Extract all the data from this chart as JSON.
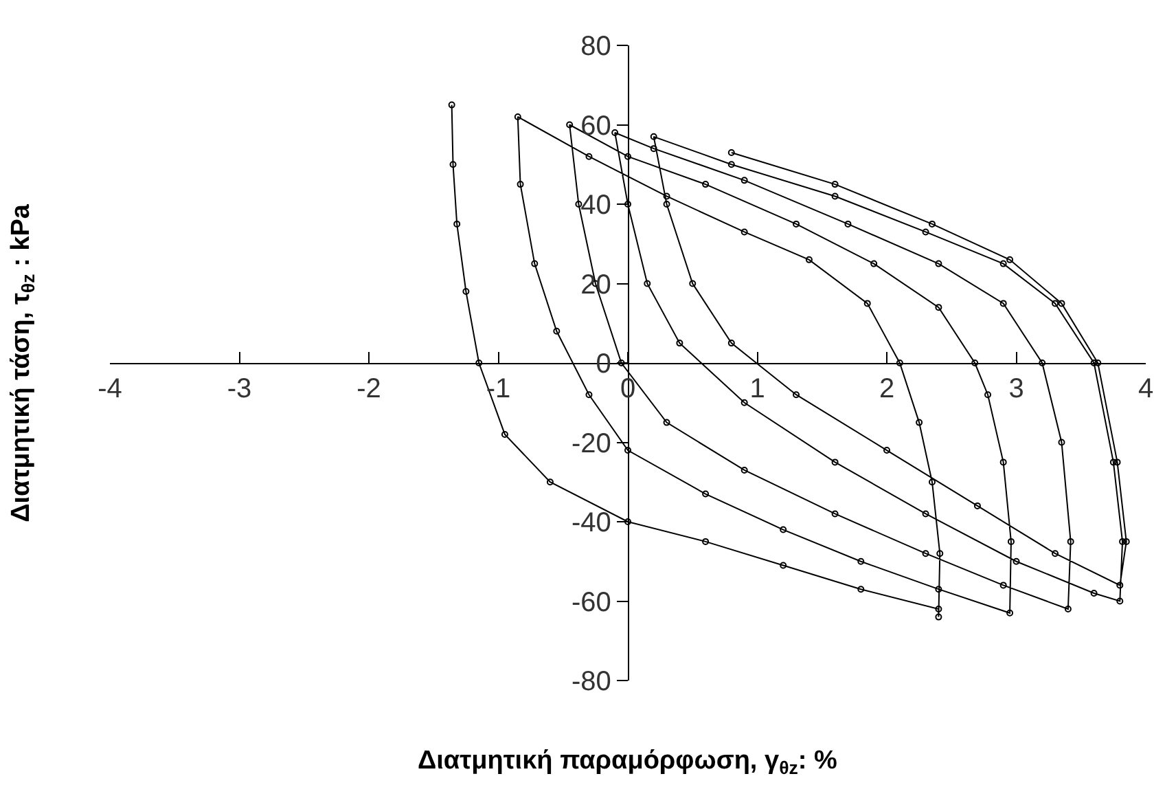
{
  "chart_data": {
    "type": "line",
    "xlabel": "Διατμητική παραμόρφωση, γ$_{θz}$: %",
    "ylabel": "Διατμητική τάση, τ$_{θz}$ : kPa",
    "xlim": [
      -4,
      4
    ],
    "xticks": [
      -4,
      -3,
      -2,
      -1,
      0,
      1,
      2,
      3,
      4
    ],
    "ylim": [
      -80,
      80
    ],
    "yticks": [
      -80,
      -60,
      -40,
      -20,
      0,
      20,
      40,
      60,
      80
    ],
    "grid": false,
    "marker": "circle",
    "line_style": "solid",
    "series": [
      {
        "color": "#000000",
        "x": [
          -1.36,
          -1.35,
          -1.32,
          -1.25,
          -1.15,
          -0.95,
          -0.6,
          0,
          0.6,
          1.2,
          1.8,
          2.4,
          2.4,
          2.41,
          2.35,
          2.25,
          2.1,
          1.85,
          1.4,
          0.9,
          0.3,
          -0.3,
          -0.85,
          -0.83,
          -0.72,
          -0.55,
          -0.3,
          0,
          0.6,
          1.2,
          1.8,
          2.4,
          2.95,
          2.96,
          2.9,
          2.78,
          2.68,
          2.4,
          1.9,
          1.3,
          0.6,
          0,
          -0.45,
          -0.38,
          -0.25,
          -0.05,
          0.3,
          0.9,
          1.6,
          2.3,
          2.9,
          3.4,
          3.42,
          3.35,
          3.2,
          2.9,
          2.4,
          1.7,
          0.9,
          0.2,
          -0.1,
          0,
          0.15,
          0.4,
          0.9,
          1.6,
          2.3,
          3.0,
          3.6,
          3.8,
          3.82,
          3.75,
          3.6,
          3.3,
          2.9,
          2.3,
          1.6,
          0.8,
          0.2,
          0.3,
          0.5,
          0.8,
          1.3,
          2.0,
          2.7,
          3.3,
          3.8,
          3.85,
          3.78,
          3.63,
          3.35,
          2.95,
          2.35,
          1.6,
          0.8
        ],
        "values": [
          65,
          50,
          35,
          18,
          0,
          -18,
          -30,
          -40,
          -45,
          -51,
          -57,
          -62,
          -64,
          -48,
          -30,
          -15,
          0,
          15,
          26,
          33,
          42,
          52,
          62,
          45,
          25,
          8,
          -8,
          -22,
          -33,
          -42,
          -50,
          -57,
          -63,
          -45,
          -25,
          -8,
          0,
          14,
          25,
          35,
          45,
          52,
          60,
          40,
          20,
          0,
          -15,
          -27,
          -38,
          -48,
          -56,
          -62,
          -45,
          -20,
          0,
          15,
          25,
          35,
          46,
          54,
          58,
          40,
          20,
          5,
          -10,
          -25,
          -38,
          -50,
          -58,
          -60,
          -45,
          -25,
          0,
          15,
          25,
          33,
          42,
          50,
          57,
          40,
          20,
          5,
          -8,
          -22,
          -36,
          -48,
          -56,
          -45,
          -25,
          0,
          15,
          26,
          35,
          45,
          53
        ]
      }
    ]
  }
}
